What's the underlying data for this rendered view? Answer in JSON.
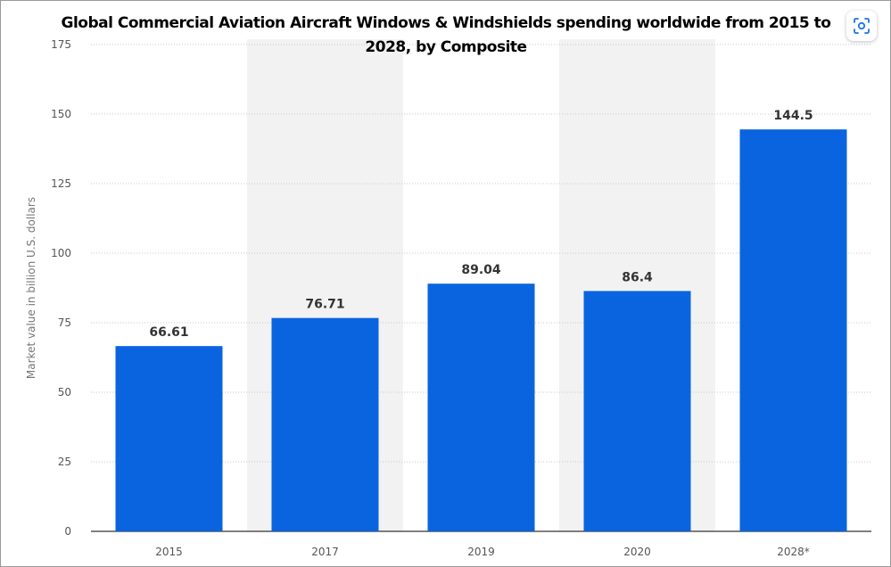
{
  "chart_data": {
    "type": "bar",
    "title": "Global Commercial Aviation Aircraft Windows & Windshields spending worldwide from 2015 to 2028, by Composite",
    "categories": [
      "2015",
      "2017",
      "2019",
      "2020",
      "2028*"
    ],
    "values": [
      66.61,
      76.71,
      89.04,
      86.4,
      144.5
    ],
    "value_labels": [
      "66.61",
      "76.71",
      "89.04",
      "86.4",
      "144.5"
    ],
    "xlabel": "",
    "ylabel": "Market value in billion U.S. dollars",
    "ylim": [
      0,
      175
    ],
    "yticks": [
      0,
      25,
      50,
      75,
      100,
      125,
      150,
      175
    ],
    "grid": true,
    "alternating_column_shading": true,
    "legend": "none",
    "bar_color": "#0a64e0",
    "band_color": "#f2f2f2",
    "grid_color": "#c8c8c8"
  },
  "controls": {
    "scan_icon": "scan-icon"
  }
}
